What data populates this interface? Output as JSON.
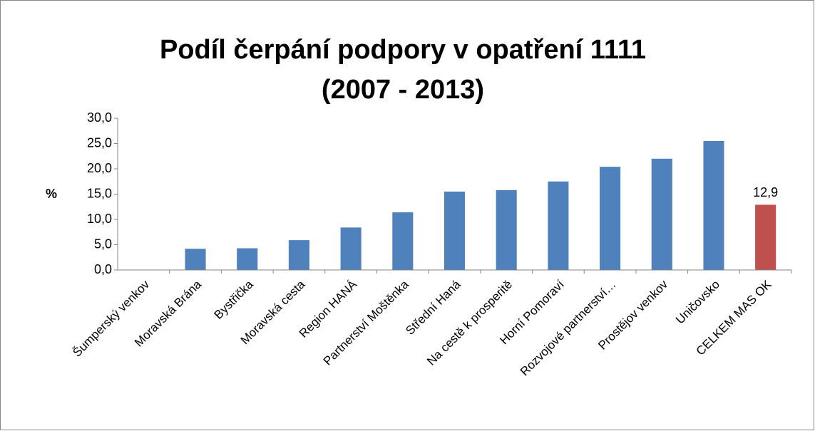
{
  "chart_data": {
    "type": "bar",
    "title": [
      "Podíl čerpání podpory v opatření 1111",
      "(2007 - 2013)"
    ],
    "y_label": "%",
    "categories": [
      "Šumperský venkov",
      "Moravská Brána",
      "Bystřička",
      "Moravská cesta",
      "Region HANÁ",
      "Partnerství Moštěnka",
      "Střední Haná",
      "Na cestě k prosperitě",
      "Horní Pomoraví",
      "Rozvojové partnerství…",
      "Prostějov venkov",
      "Uničovsko",
      "CELKEM MAS OK"
    ],
    "values": [
      0,
      4.2,
      4.3,
      5.9,
      8.4,
      11.4,
      15.5,
      15.8,
      17.5,
      20.4,
      22.0,
      25.5,
      12.9
    ],
    "value_labels": [
      null,
      null,
      null,
      null,
      null,
      null,
      null,
      null,
      null,
      null,
      null,
      null,
      "12,9"
    ],
    "colors": [
      "#4f81bd",
      "#4f81bd",
      "#4f81bd",
      "#4f81bd",
      "#4f81bd",
      "#4f81bd",
      "#4f81bd",
      "#4f81bd",
      "#4f81bd",
      "#4f81bd",
      "#4f81bd",
      "#4f81bd",
      "#c0504d"
    ],
    "ylim": [
      0,
      30
    ],
    "yticks": [
      {
        "value": 0,
        "label": "0,0"
      },
      {
        "value": 5,
        "label": "5,0"
      },
      {
        "value": 10,
        "label": "10,0"
      },
      {
        "value": 15,
        "label": "15,0"
      },
      {
        "value": 20,
        "label": "20,0"
      },
      {
        "value": 25,
        "label": "25,0"
      },
      {
        "value": 30,
        "label": "30,0"
      }
    ],
    "grid": false
  }
}
